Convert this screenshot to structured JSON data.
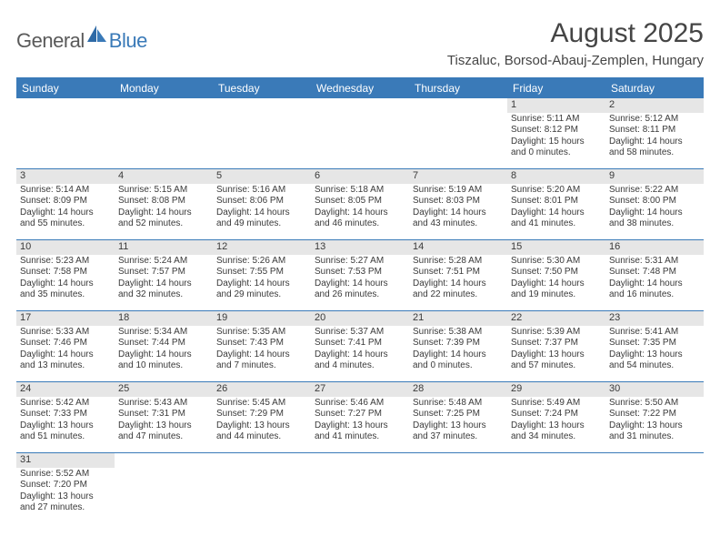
{
  "logo": {
    "part1": "General",
    "part2": "Blue"
  },
  "title": "August 2025",
  "location": "Tiszaluc, Borsod-Abauj-Zemplen, Hungary",
  "colors": {
    "header_bg": "#3a7ab8",
    "header_text": "#ffffff",
    "daynum_bg": "#e6e6e6",
    "text": "#3a3a3a",
    "rule": "#3a7ab8",
    "logo_gray": "#5a5a5a",
    "logo_blue": "#3a7ab8"
  },
  "day_headers": [
    "Sunday",
    "Monday",
    "Tuesday",
    "Wednesday",
    "Thursday",
    "Friday",
    "Saturday"
  ],
  "weeks": [
    [
      null,
      null,
      null,
      null,
      null,
      {
        "n": "1",
        "sr": "Sunrise: 5:11 AM",
        "ss": "Sunset: 8:12 PM",
        "dl1": "Daylight: 15 hours",
        "dl2": "and 0 minutes."
      },
      {
        "n": "2",
        "sr": "Sunrise: 5:12 AM",
        "ss": "Sunset: 8:11 PM",
        "dl1": "Daylight: 14 hours",
        "dl2": "and 58 minutes."
      }
    ],
    [
      {
        "n": "3",
        "sr": "Sunrise: 5:14 AM",
        "ss": "Sunset: 8:09 PM",
        "dl1": "Daylight: 14 hours",
        "dl2": "and 55 minutes."
      },
      {
        "n": "4",
        "sr": "Sunrise: 5:15 AM",
        "ss": "Sunset: 8:08 PM",
        "dl1": "Daylight: 14 hours",
        "dl2": "and 52 minutes."
      },
      {
        "n": "5",
        "sr": "Sunrise: 5:16 AM",
        "ss": "Sunset: 8:06 PM",
        "dl1": "Daylight: 14 hours",
        "dl2": "and 49 minutes."
      },
      {
        "n": "6",
        "sr": "Sunrise: 5:18 AM",
        "ss": "Sunset: 8:05 PM",
        "dl1": "Daylight: 14 hours",
        "dl2": "and 46 minutes."
      },
      {
        "n": "7",
        "sr": "Sunrise: 5:19 AM",
        "ss": "Sunset: 8:03 PM",
        "dl1": "Daylight: 14 hours",
        "dl2": "and 43 minutes."
      },
      {
        "n": "8",
        "sr": "Sunrise: 5:20 AM",
        "ss": "Sunset: 8:01 PM",
        "dl1": "Daylight: 14 hours",
        "dl2": "and 41 minutes."
      },
      {
        "n": "9",
        "sr": "Sunrise: 5:22 AM",
        "ss": "Sunset: 8:00 PM",
        "dl1": "Daylight: 14 hours",
        "dl2": "and 38 minutes."
      }
    ],
    [
      {
        "n": "10",
        "sr": "Sunrise: 5:23 AM",
        "ss": "Sunset: 7:58 PM",
        "dl1": "Daylight: 14 hours",
        "dl2": "and 35 minutes."
      },
      {
        "n": "11",
        "sr": "Sunrise: 5:24 AM",
        "ss": "Sunset: 7:57 PM",
        "dl1": "Daylight: 14 hours",
        "dl2": "and 32 minutes."
      },
      {
        "n": "12",
        "sr": "Sunrise: 5:26 AM",
        "ss": "Sunset: 7:55 PM",
        "dl1": "Daylight: 14 hours",
        "dl2": "and 29 minutes."
      },
      {
        "n": "13",
        "sr": "Sunrise: 5:27 AM",
        "ss": "Sunset: 7:53 PM",
        "dl1": "Daylight: 14 hours",
        "dl2": "and 26 minutes."
      },
      {
        "n": "14",
        "sr": "Sunrise: 5:28 AM",
        "ss": "Sunset: 7:51 PM",
        "dl1": "Daylight: 14 hours",
        "dl2": "and 22 minutes."
      },
      {
        "n": "15",
        "sr": "Sunrise: 5:30 AM",
        "ss": "Sunset: 7:50 PM",
        "dl1": "Daylight: 14 hours",
        "dl2": "and 19 minutes."
      },
      {
        "n": "16",
        "sr": "Sunrise: 5:31 AM",
        "ss": "Sunset: 7:48 PM",
        "dl1": "Daylight: 14 hours",
        "dl2": "and 16 minutes."
      }
    ],
    [
      {
        "n": "17",
        "sr": "Sunrise: 5:33 AM",
        "ss": "Sunset: 7:46 PM",
        "dl1": "Daylight: 14 hours",
        "dl2": "and 13 minutes."
      },
      {
        "n": "18",
        "sr": "Sunrise: 5:34 AM",
        "ss": "Sunset: 7:44 PM",
        "dl1": "Daylight: 14 hours",
        "dl2": "and 10 minutes."
      },
      {
        "n": "19",
        "sr": "Sunrise: 5:35 AM",
        "ss": "Sunset: 7:43 PM",
        "dl1": "Daylight: 14 hours",
        "dl2": "and 7 minutes."
      },
      {
        "n": "20",
        "sr": "Sunrise: 5:37 AM",
        "ss": "Sunset: 7:41 PM",
        "dl1": "Daylight: 14 hours",
        "dl2": "and 4 minutes."
      },
      {
        "n": "21",
        "sr": "Sunrise: 5:38 AM",
        "ss": "Sunset: 7:39 PM",
        "dl1": "Daylight: 14 hours",
        "dl2": "and 0 minutes."
      },
      {
        "n": "22",
        "sr": "Sunrise: 5:39 AM",
        "ss": "Sunset: 7:37 PM",
        "dl1": "Daylight: 13 hours",
        "dl2": "and 57 minutes."
      },
      {
        "n": "23",
        "sr": "Sunrise: 5:41 AM",
        "ss": "Sunset: 7:35 PM",
        "dl1": "Daylight: 13 hours",
        "dl2": "and 54 minutes."
      }
    ],
    [
      {
        "n": "24",
        "sr": "Sunrise: 5:42 AM",
        "ss": "Sunset: 7:33 PM",
        "dl1": "Daylight: 13 hours",
        "dl2": "and 51 minutes."
      },
      {
        "n": "25",
        "sr": "Sunrise: 5:43 AM",
        "ss": "Sunset: 7:31 PM",
        "dl1": "Daylight: 13 hours",
        "dl2": "and 47 minutes."
      },
      {
        "n": "26",
        "sr": "Sunrise: 5:45 AM",
        "ss": "Sunset: 7:29 PM",
        "dl1": "Daylight: 13 hours",
        "dl2": "and 44 minutes."
      },
      {
        "n": "27",
        "sr": "Sunrise: 5:46 AM",
        "ss": "Sunset: 7:27 PM",
        "dl1": "Daylight: 13 hours",
        "dl2": "and 41 minutes."
      },
      {
        "n": "28",
        "sr": "Sunrise: 5:48 AM",
        "ss": "Sunset: 7:25 PM",
        "dl1": "Daylight: 13 hours",
        "dl2": "and 37 minutes."
      },
      {
        "n": "29",
        "sr": "Sunrise: 5:49 AM",
        "ss": "Sunset: 7:24 PM",
        "dl1": "Daylight: 13 hours",
        "dl2": "and 34 minutes."
      },
      {
        "n": "30",
        "sr": "Sunrise: 5:50 AM",
        "ss": "Sunset: 7:22 PM",
        "dl1": "Daylight: 13 hours",
        "dl2": "and 31 minutes."
      }
    ],
    [
      {
        "n": "31",
        "sr": "Sunrise: 5:52 AM",
        "ss": "Sunset: 7:20 PM",
        "dl1": "Daylight: 13 hours",
        "dl2": "and 27 minutes."
      },
      null,
      null,
      null,
      null,
      null,
      null
    ]
  ]
}
